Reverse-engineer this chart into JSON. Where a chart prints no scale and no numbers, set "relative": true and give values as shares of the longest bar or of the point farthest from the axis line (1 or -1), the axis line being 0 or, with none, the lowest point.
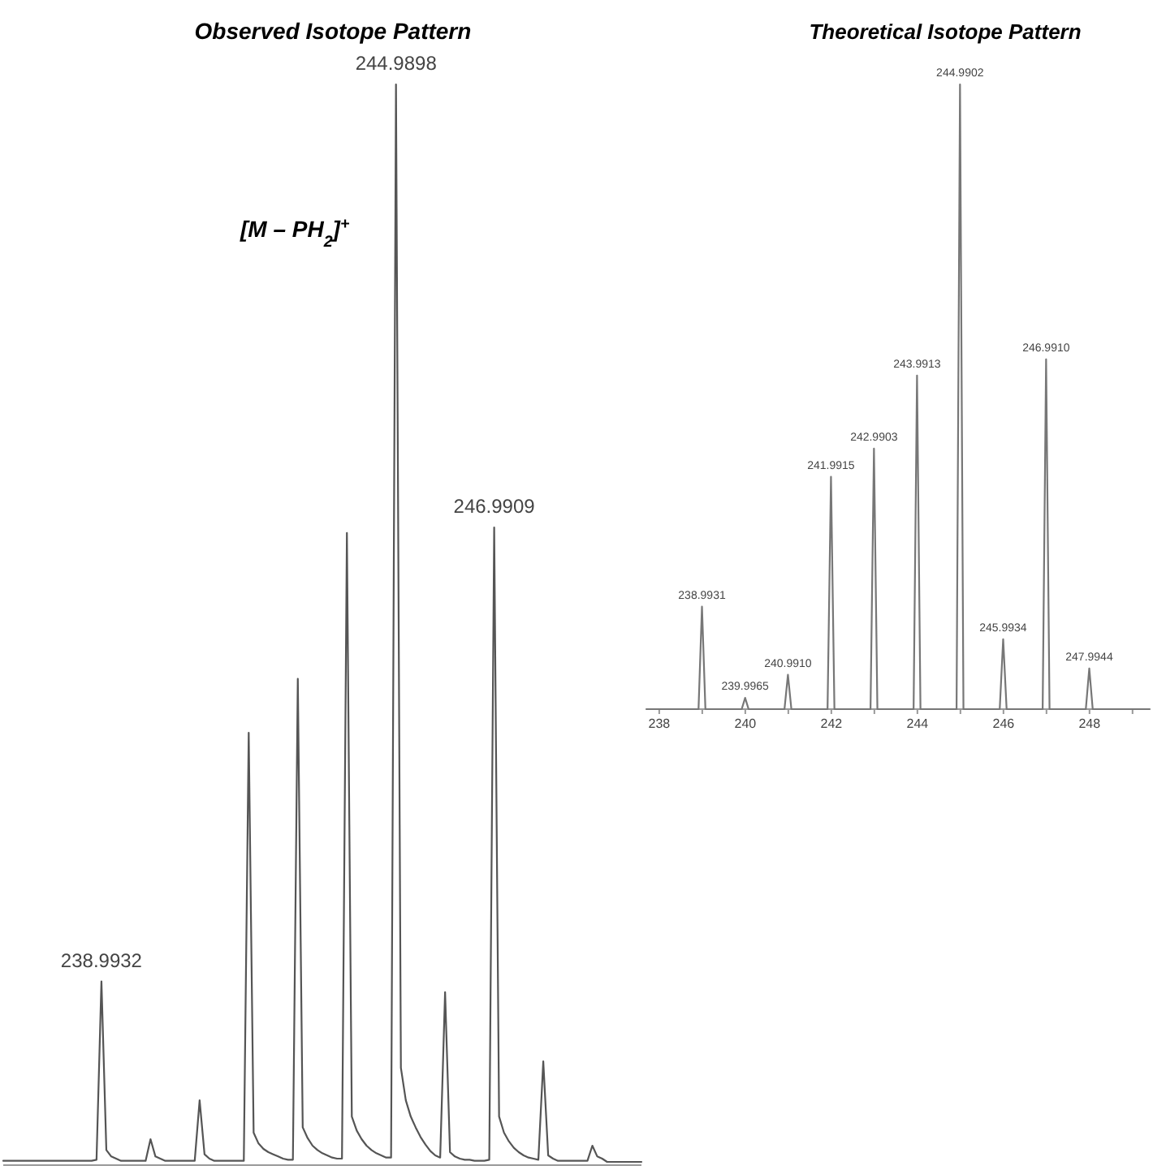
{
  "chart_data": [
    {
      "type": "line",
      "title": "Observed Isotope Pattern",
      "relative": true,
      "categories": [
        null,
        null,
        null,
        null,
        null,
        null,
        null,
        null,
        null,
        null,
        null,
        null,
        null,
        null,
        null,
        null,
        null,
        null,
        null,
        null,
        null,
        null,
        null,
        null,
        null,
        null,
        null,
        null,
        null,
        null,
        null,
        null,
        null,
        null,
        null,
        null,
        null,
        null,
        null,
        null,
        null,
        null,
        null,
        null,
        null,
        null,
        null,
        null,
        null,
        null,
        null,
        null,
        null,
        null,
        null,
        null,
        null,
        null,
        null,
        null,
        null,
        null,
        null,
        null,
        null,
        null,
        null,
        null,
        null,
        null,
        null,
        null,
        null,
        null,
        null,
        null,
        null,
        null,
        null,
        null,
        null,
        null,
        null,
        null,
        null,
        null,
        null,
        null,
        null,
        null,
        null,
        null,
        null,
        null,
        null,
        null,
        null,
        null,
        null,
        null,
        null,
        null,
        null,
        null,
        null,
        null,
        null,
        null,
        null,
        null,
        null,
        null,
        null,
        null,
        null,
        null,
        null,
        null,
        null,
        null,
        null,
        null,
        null,
        null,
        null,
        null,
        null,
        null,
        null,
        null,
        null
      ],
      "series": [
        {
          "color": "#555555",
          "values": [
            0.004,
            0.004,
            0.004,
            0.004,
            0.004,
            0.004,
            0.004,
            0.004,
            0.004,
            0.004,
            0.004,
            0.004,
            0.004,
            0.004,
            0.004,
            0.004,
            0.004,
            0.004,
            0.004,
            0.005,
            0.17,
            0.014,
            0.008,
            0.006,
            0.004,
            0.004,
            0.004,
            0.004,
            0.004,
            0.004,
            0.024,
            0.008,
            0.006,
            0.004,
            0.004,
            0.004,
            0.004,
            0.004,
            0.004,
            0.004,
            0.06,
            0.01,
            0.006,
            0.004,
            0.004,
            0.004,
            0.004,
            0.004,
            0.004,
            0.004,
            0.4,
            0.03,
            0.02,
            0.015,
            0.012,
            0.01,
            0.008,
            0.006,
            0.005,
            0.005,
            0.45,
            0.035,
            0.025,
            0.018,
            0.014,
            0.011,
            0.009,
            0.007,
            0.006,
            0.006,
            0.585,
            0.045,
            0.032,
            0.024,
            0.018,
            0.014,
            0.011,
            0.009,
            0.007,
            0.007,
            1,
            0.09,
            0.06,
            0.045,
            0.035,
            0.026,
            0.019,
            0.013,
            0.009,
            0.007,
            0.16,
            0.012,
            0.008,
            0.006,
            0.005,
            0.005,
            0.004,
            0.004,
            0.004,
            0.005,
            0.59,
            0.045,
            0.03,
            0.022,
            0.016,
            0.012,
            0.009,
            0.007,
            0.006,
            0.005,
            0.096,
            0.009,
            0.006,
            0.004,
            0.004,
            0.004,
            0.004,
            0.004,
            0.004,
            0.004,
            0.018,
            0.008,
            0.006,
            0.003,
            0.003,
            0.003,
            0.003,
            0.003,
            0.003,
            0.003,
            0.003
          ]
        }
      ],
      "annotations": [
        {
          "text": "238.9932",
          "y": 0.17
        },
        {
          "text": "244.9898",
          "y": 1
        },
        {
          "text": "246.9909",
          "y": 0.59
        },
        "[M – PH$_{2}$]$^{+}$"
      ]
    },
    {
      "type": "line",
      "title": "Theoretical Isotope Pattern",
      "relative": true,
      "xlim": [
        237.7,
        249.4
      ],
      "xticks": [
        238,
        {
          "value": 239,
          "label": null
        },
        240,
        {
          "value": 241,
          "label": null
        },
        242,
        {
          "value": 243,
          "label": null
        },
        244,
        {
          "value": 245,
          "label": null
        },
        246,
        {
          "value": 247,
          "label": null
        },
        248,
        {
          "value": 249,
          "label": null
        }
      ],
      "series": [
        {
          "color": "#777777",
          "x": [
            237.7,
            238.9131,
            238.9931,
            239.0731,
            239.9165,
            239.9965,
            240.0765,
            240.911,
            240.991,
            241.071,
            241.9115,
            241.9915,
            242.0715,
            242.9103,
            242.9903,
            243.0703,
            243.9113,
            243.9913,
            244.0713,
            244.9102,
            244.9902,
            245.0702,
            245.9134,
            245.9934,
            246.0734,
            246.911,
            246.991,
            247.071,
            247.9144,
            247.9944,
            248.0744,
            249.4
          ],
          "values": [
            0,
            0,
            0.164,
            0,
            0,
            0.018,
            0,
            0,
            0.055,
            0,
            0,
            0.372,
            0,
            0,
            0.417,
            0,
            0,
            0.534,
            0,
            0,
            1,
            0,
            0,
            0.112,
            0,
            0,
            0.56,
            0,
            0,
            0.065,
            0,
            0
          ]
        }
      ],
      "annotations": [
        {
          "text": "238.9931",
          "x": 238.9931,
          "y": 0.164
        },
        {
          "text": "239.9965",
          "x": 239.9965,
          "y": 0.018
        },
        {
          "text": "240.9910",
          "x": 240.991,
          "y": 0.055
        },
        {
          "text": "241.9915",
          "x": 241.9915,
          "y": 0.372
        },
        {
          "text": "242.9903",
          "x": 242.9903,
          "y": 0.417
        },
        {
          "text": "243.9913",
          "x": 243.9913,
          "y": 0.534
        },
        {
          "text": "244.9902",
          "x": 244.9902,
          "y": 1
        },
        {
          "text": "245.9934",
          "x": 245.9934,
          "y": 0.112
        },
        {
          "text": "246.9910",
          "x": 246.991,
          "y": 0.56
        },
        {
          "text": "247.9944",
          "x": 247.9944,
          "y": 0.065
        }
      ]
    }
  ]
}
